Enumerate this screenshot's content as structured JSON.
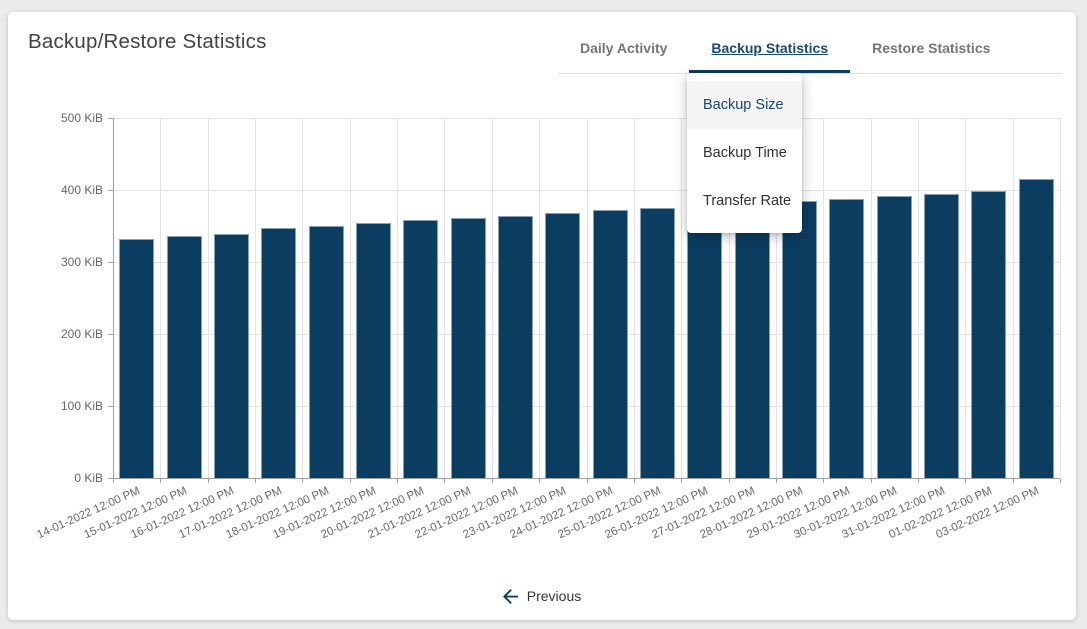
{
  "header": {
    "title": "Backup/Restore Statistics"
  },
  "tabs": [
    {
      "label": "Daily Activity",
      "active": false
    },
    {
      "label": "Backup Statistics",
      "active": true
    },
    {
      "label": "Restore Statistics",
      "active": false
    }
  ],
  "dropdown": {
    "items": [
      {
        "label": "Backup Size",
        "selected": true
      },
      {
        "label": "Backup Time",
        "selected": false
      },
      {
        "label": "Transfer Rate",
        "selected": false
      }
    ]
  },
  "pagination": {
    "previous_label": "Previous"
  },
  "colors": {
    "bar": "#0b3d60",
    "accent": "#0b3d60",
    "tab_active_text": "#164a72",
    "tab_inactive_text": "#757575",
    "grid": "#e3e3e3",
    "axis": "#9e9e9e",
    "axis_label": "#666666",
    "menu_selected_bg": "#f4f4f4",
    "page_background": "#ebebeb"
  },
  "chart_data": {
    "type": "bar",
    "title": "",
    "series_name": "Backup Size",
    "xlabel": "",
    "ylabel": "KiB",
    "unit": "KiB",
    "grid": true,
    "legend": "none",
    "ylim": [
      0,
      500
    ],
    "y_ticks": [
      {
        "label": "0 KiB",
        "value": 0
      },
      {
        "label": "100 KiB",
        "value": 100
      },
      {
        "label": "200 KiB",
        "value": 200
      },
      {
        "label": "300 KiB",
        "value": 300
      },
      {
        "label": "400 KiB",
        "value": 400
      },
      {
        "label": "500 KiB",
        "value": 500
      }
    ],
    "categories": [
      "14-01-2022 12:00 PM",
      "15-01-2022 12:00 PM",
      "16-01-2022 12:00 PM",
      "17-01-2022 12:00 PM",
      "18-01-2022 12:00 PM",
      "19-01-2022 12:00 PM",
      "20-01-2022 12:00 PM",
      "21-01-2022 12:00 PM",
      "22-01-2022 12:00 PM",
      "23-01-2022 12:00 PM",
      "24-01-2022 12:00 PM",
      "25-01-2022 12:00 PM",
      "26-01-2022 12:00 PM",
      "27-01-2022 12:00 PM",
      "28-01-2022 12:00 PM",
      "29-01-2022 12:00 PM",
      "30-01-2022 12:00 PM",
      "31-01-2022 12:00 PM",
      "01-02-2022 12:00 PM",
      "03-02-2022 12:00 PM"
    ],
    "values": [
      332,
      336,
      339,
      347,
      350,
      354,
      358,
      361,
      364,
      368,
      372,
      375,
      378,
      382,
      385,
      388,
      392,
      395,
      399,
      415
    ]
  }
}
